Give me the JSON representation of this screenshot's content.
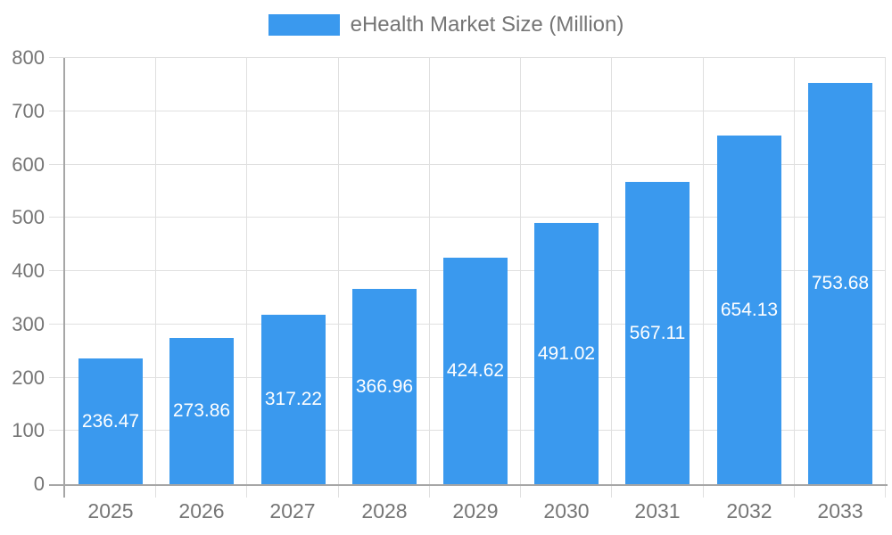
{
  "legend": {
    "position": "top-center",
    "items": [
      {
        "label": "eHealth Market Size (Million)",
        "color": "#3A99EE"
      }
    ]
  },
  "colors": {
    "bar": "#3A99EE",
    "axis_line": "#A6A6A6",
    "grid_line": "#E0E0E0",
    "tick_label": "#757575",
    "value_label": "#FFFFFF",
    "background": "#FFFFFF"
  },
  "chart_data": {
    "type": "bar",
    "title": "eHealth Market Size (Million)",
    "categories": [
      "2025",
      "2026",
      "2027",
      "2028",
      "2029",
      "2030",
      "2031",
      "2032",
      "2033"
    ],
    "values": [
      236.47,
      273.86,
      317.22,
      366.96,
      424.62,
      491.02,
      567.11,
      654.13,
      753.68
    ],
    "value_labels": [
      "236.47",
      "273.86",
      "317.22",
      "366.96",
      "424.62",
      "491.02",
      "567.11",
      "654.13",
      "753.68"
    ],
    "xlabel": "",
    "ylabel": "",
    "ylim": [
      0,
      800
    ],
    "ytick_step": 100,
    "yticks": [
      0,
      100,
      200,
      300,
      400,
      500,
      600,
      700,
      800
    ],
    "grid": true,
    "legend_position": "top-center",
    "value_label_position": "inside-center"
  }
}
